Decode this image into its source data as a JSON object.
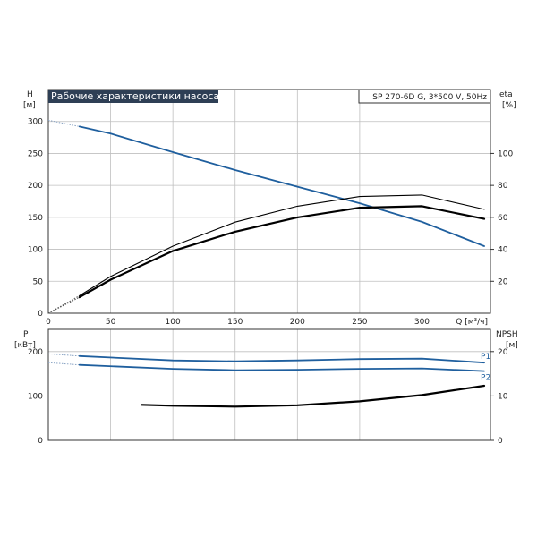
{
  "chart_data": [
    {
      "type": "line",
      "title": "Рабочие характеристики насоса",
      "model": "SP 270-6D G, 3*500 V, 50Hz",
      "xlabel": "Q [м³/ч]",
      "ylabel_top": "H",
      "ylabel_unit": "[м]",
      "y2label_top": "eta",
      "y2label_unit": "[%]",
      "xlim": [
        0,
        355
      ],
      "ylim": [
        0,
        350
      ],
      "y2lim": [
        0,
        140
      ],
      "x_ticks": [
        "0",
        "50",
        "100",
        "150",
        "200",
        "250",
        "300"
      ],
      "y_ticks": [
        "0",
        "50",
        "100",
        "150",
        "200",
        "250",
        "300"
      ],
      "y2_ticks": [
        "20",
        "40",
        "60",
        "80",
        "100"
      ],
      "grid": true,
      "series": [
        {
          "name": "",
          "axis": "left",
          "color": "#1f5f9e",
          "x": [
            25,
            50,
            100,
            150,
            200,
            250,
            300,
            350
          ],
          "y": [
            292,
            281,
            252,
            224,
            198,
            172,
            143,
            105
          ],
          "extension": {
            "x": [
              0,
              25
            ],
            "y": [
              302,
              292
            ]
          }
        },
        {
          "name": "",
          "axis": "right",
          "color": "#000000",
          "thick": true,
          "x": [
            25,
            50,
            100,
            150,
            200,
            250,
            300,
            350
          ],
          "y": [
            10,
            21,
            39,
            51,
            60,
            66,
            67,
            59
          ],
          "extension": {
            "x": [
              0,
              25
            ],
            "y": [
              0,
              10
            ]
          }
        },
        {
          "name": "",
          "axis": "right",
          "color": "#000000",
          "thick": false,
          "x": [
            25,
            50,
            100,
            150,
            200,
            250,
            300,
            350
          ],
          "y": [
            11,
            23,
            42,
            57,
            67,
            73,
            74,
            65
          ],
          "extension": {
            "x": [
              0,
              25
            ],
            "y": [
              0,
              11
            ]
          }
        }
      ]
    },
    {
      "type": "line",
      "ylabel_top": "P",
      "ylabel_unit": "[кВт]",
      "y2label_top": "NPSH",
      "y2label_unit": "[м]",
      "xlim": [
        0,
        355
      ],
      "ylim": [
        0,
        250
      ],
      "y2lim": [
        0,
        25
      ],
      "y_ticks": [
        "0",
        "100",
        "200"
      ],
      "y2_ticks": [
        "0",
        "10",
        "20"
      ],
      "grid": true,
      "series": [
        {
          "name": "P1",
          "axis": "left",
          "color": "#1f5f9e",
          "x": [
            25,
            100,
            150,
            200,
            250,
            300,
            350
          ],
          "y": [
            190,
            180,
            178,
            180,
            183,
            184,
            175
          ],
          "extension": {
            "x": [
              0,
              25
            ],
            "y": [
              195,
              190
            ]
          }
        },
        {
          "name": "P2",
          "axis": "left",
          "color": "#1f5f9e",
          "x": [
            25,
            100,
            150,
            200,
            250,
            300,
            350
          ],
          "y": [
            170,
            161,
            158,
            159,
            161,
            162,
            156
          ],
          "extension": {
            "x": [
              0,
              25
            ],
            "y": [
              175,
              170
            ]
          }
        },
        {
          "name": "",
          "axis": "right",
          "color": "#000000",
          "thick": true,
          "x": [
            75,
            100,
            150,
            200,
            250,
            300,
            350
          ],
          "y": [
            8.0,
            7.8,
            7.6,
            7.9,
            8.8,
            10.2,
            12.3
          ]
        }
      ]
    }
  ]
}
